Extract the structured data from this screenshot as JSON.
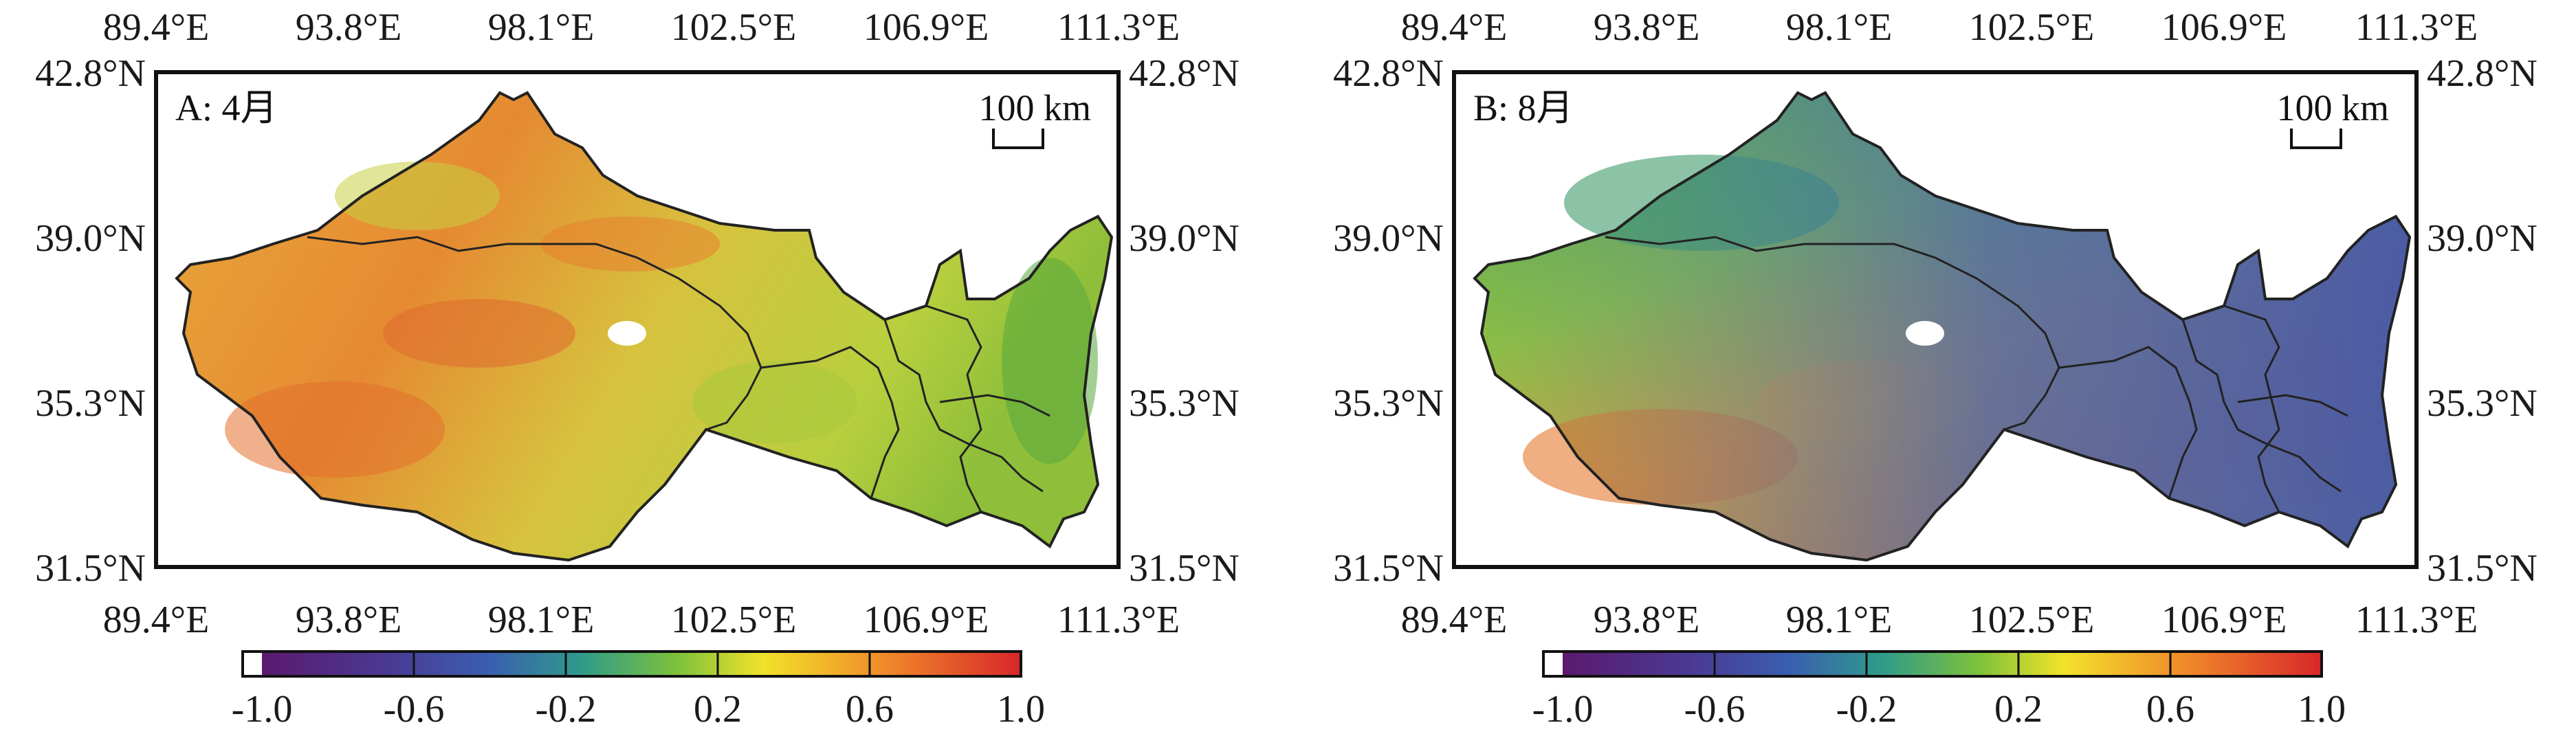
{
  "panels": [
    {
      "label": "A: 4月",
      "scale_label": "100 km",
      "x_ticks": [
        "89.4°E",
        "93.8°E",
        "98.1°E",
        "102.5°E",
        "106.9°E",
        "111.3°E"
      ],
      "y_ticks": [
        "42.8°N",
        "39.0°N",
        "35.3°N",
        "31.5°N"
      ]
    },
    {
      "label": "B: 8月",
      "scale_label": "100 km",
      "x_ticks": [
        "89.4°E",
        "93.8°E",
        "98.1°E",
        "102.5°E",
        "106.9°E",
        "111.3°E"
      ],
      "y_ticks": [
        "42.8°N",
        "39.0°N",
        "35.3°N",
        "31.5°N"
      ]
    }
  ],
  "colorbar": {
    "tick_labels": [
      "-1.0",
      "-0.6",
      "-0.2",
      "0.2",
      "0.6",
      "1.0"
    ],
    "range": [
      -1.0,
      1.0
    ],
    "colors": [
      "#5a1a6e",
      "#3a5fb0",
      "#2f9a8a",
      "#7fc23a",
      "#f2e22a",
      "#f08a2a",
      "#d8262a"
    ]
  },
  "colors": {
    "panel_a_dominant": "#e3a23a",
    "panel_b_dominant": "#4aa56a",
    "boundary": "#222222"
  }
}
